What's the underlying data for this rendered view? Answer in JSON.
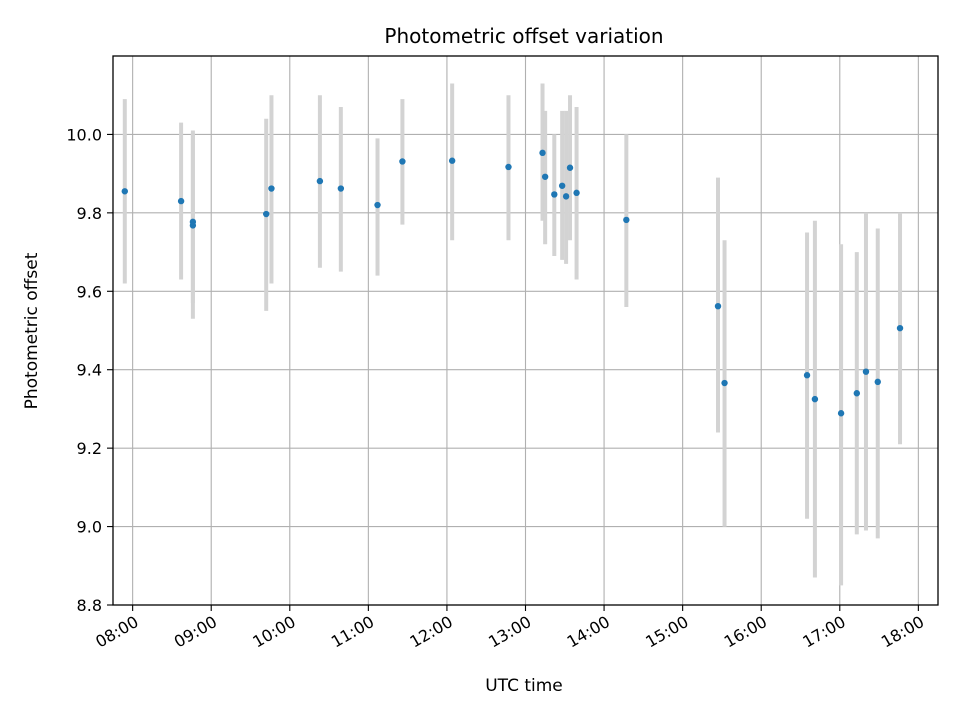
{
  "chart_data": {
    "type": "scatter",
    "title": "Photometric offset variation",
    "xlabel": "UTC time",
    "ylabel": "Photometric offset",
    "xlim": [
      "07:45",
      "18:15"
    ],
    "ylim": [
      8.8,
      10.2
    ],
    "grid": true,
    "x_ticks": [
      "08:00",
      "09:00",
      "10:00",
      "11:00",
      "12:00",
      "13:00",
      "14:00",
      "15:00",
      "16:00",
      "17:00",
      "18:00"
    ],
    "y_ticks": [
      "8.8",
      "9.0",
      "9.2",
      "9.4",
      "9.6",
      "9.8",
      "10.0"
    ],
    "marker_color": "#1f77b4",
    "errorbar_color": "#d3d3d3",
    "points": [
      {
        "t": "07:54",
        "y": 9.855,
        "lo": 9.62,
        "hi": 10.09
      },
      {
        "t": "08:37",
        "y": 9.83,
        "lo": 9.63,
        "hi": 10.03
      },
      {
        "t": "08:46",
        "y": 9.777,
        "lo": 9.57,
        "hi": 10.0
      },
      {
        "t": "08:46",
        "y": 9.768,
        "lo": 9.53,
        "hi": 10.01
      },
      {
        "t": "09:42",
        "y": 9.797,
        "lo": 9.55,
        "hi": 10.04
      },
      {
        "t": "09:46",
        "y": 9.862,
        "lo": 9.62,
        "hi": 10.1
      },
      {
        "t": "10:23",
        "y": 9.881,
        "lo": 9.66,
        "hi": 10.1
      },
      {
        "t": "10:39",
        "y": 9.862,
        "lo": 9.65,
        "hi": 10.07
      },
      {
        "t": "11:07",
        "y": 9.82,
        "lo": 9.64,
        "hi": 9.99
      },
      {
        "t": "11:26",
        "y": 9.931,
        "lo": 9.77,
        "hi": 10.09
      },
      {
        "t": "12:04",
        "y": 9.933,
        "lo": 9.73,
        "hi": 10.13
      },
      {
        "t": "12:47",
        "y": 9.917,
        "lo": 9.73,
        "hi": 10.1
      },
      {
        "t": "13:13",
        "y": 9.953,
        "lo": 9.78,
        "hi": 10.13
      },
      {
        "t": "13:15",
        "y": 9.892,
        "lo": 9.72,
        "hi": 10.06
      },
      {
        "t": "13:22",
        "y": 9.847,
        "lo": 9.69,
        "hi": 10.0
      },
      {
        "t": "13:28",
        "y": 9.869,
        "lo": 9.68,
        "hi": 10.06
      },
      {
        "t": "13:31",
        "y": 9.842,
        "lo": 9.67,
        "hi": 10.06
      },
      {
        "t": "13:34",
        "y": 9.915,
        "lo": 9.73,
        "hi": 10.1
      },
      {
        "t": "13:39",
        "y": 9.851,
        "lo": 9.63,
        "hi": 10.07
      },
      {
        "t": "14:17",
        "y": 9.782,
        "lo": 9.56,
        "hi": 10.0
      },
      {
        "t": "15:27",
        "y": 9.562,
        "lo": 9.24,
        "hi": 9.89
      },
      {
        "t": "15:32",
        "y": 9.366,
        "lo": 9.0,
        "hi": 9.73
      },
      {
        "t": "16:35",
        "y": 9.386,
        "lo": 9.02,
        "hi": 9.75
      },
      {
        "t": "16:41",
        "y": 9.325,
        "lo": 8.87,
        "hi": 9.78
      },
      {
        "t": "17:01",
        "y": 9.289,
        "lo": 8.85,
        "hi": 9.72
      },
      {
        "t": "17:13",
        "y": 9.34,
        "lo": 8.98,
        "hi": 9.7
      },
      {
        "t": "17:20",
        "y": 9.395,
        "lo": 8.99,
        "hi": 9.8
      },
      {
        "t": "17:29",
        "y": 9.369,
        "lo": 8.97,
        "hi": 9.76
      },
      {
        "t": "17:46",
        "y": 9.506,
        "lo": 9.21,
        "hi": 9.8
      }
    ]
  }
}
